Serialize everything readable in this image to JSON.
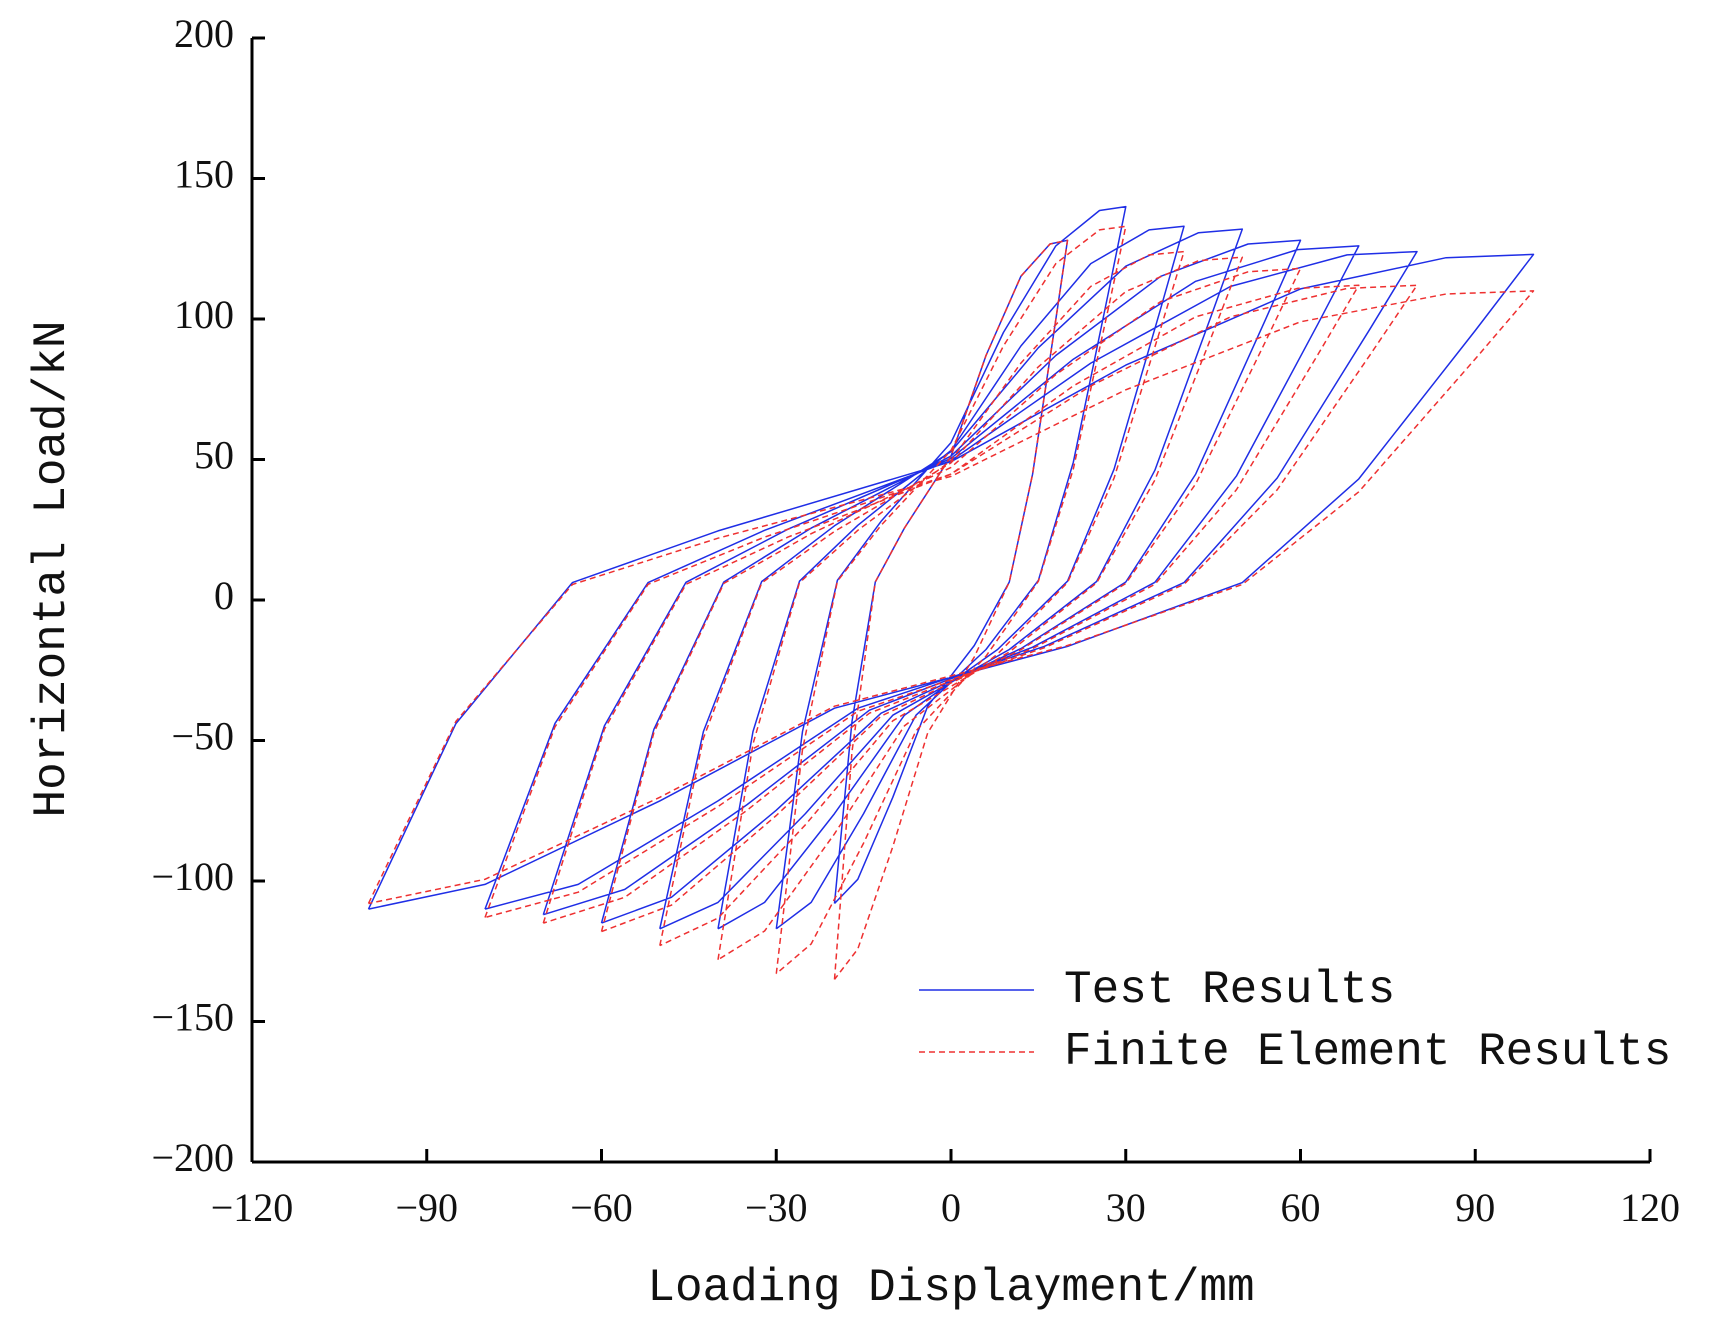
{
  "chart_data": {
    "type": "line",
    "xlabel": "Loading Displayment/mm",
    "ylabel": "Horizontal Load/kN",
    "xlim": [
      -120,
      120
    ],
    "ylim": [
      -200,
      200
    ],
    "xticks": [
      {
        "value": -120,
        "label": "−120"
      },
      {
        "value": -90,
        "label": "−90"
      },
      {
        "value": -60,
        "label": "−60"
      },
      {
        "value": -30,
        "label": "−30"
      },
      0,
      30,
      60,
      90,
      120
    ],
    "yticks": [
      {
        "value": -200,
        "label": "−200"
      },
      {
        "value": -150,
        "label": "−150"
      },
      {
        "value": -100,
        "label": "−100"
      },
      {
        "value": -50,
        "label": "−50"
      },
      0,
      50,
      100,
      150,
      200
    ],
    "legend": "lower right",
    "series": [
      {
        "name": "Test Results",
        "color": "#1f2ee6",
        "dash": "solid",
        "x": [
          -20,
          -17,
          -13,
          -8,
          0,
          6,
          12,
          17,
          20,
          18,
          14,
          10,
          4,
          -4,
          -10,
          -16,
          -20,
          null,
          -30,
          -25.5,
          -19.5,
          -12,
          0,
          9,
          18,
          25.5,
          30,
          27,
          21,
          15,
          6,
          -6,
          -15,
          -24,
          -30,
          null,
          -40,
          -34,
          -26,
          -16,
          0,
          12,
          24,
          34,
          40,
          36,
          28,
          20,
          8,
          -8,
          -20,
          -32,
          -40,
          null,
          -50,
          -42.5,
          -32.5,
          -20,
          0,
          15,
          30,
          42.5,
          50,
          45,
          35,
          25,
          10,
          -10,
          -25,
          -40,
          -50,
          null,
          -60,
          -51,
          -39,
          -24,
          0,
          18,
          36,
          51,
          60,
          54,
          42,
          30,
          12,
          -12,
          -30,
          -48,
          -60,
          null,
          -70,
          -59.5,
          -45.5,
          -28,
          0,
          21,
          42,
          59.5,
          70,
          63,
          49,
          35,
          14,
          -14,
          -35,
          -56,
          -70,
          null,
          -80,
          -68,
          -52,
          -32,
          0,
          24,
          48,
          68,
          80,
          72,
          56,
          40,
          16,
          -16,
          -40,
          -64,
          -80,
          null,
          -100,
          -85,
          -65,
          -40,
          0,
          30,
          60,
          85,
          100,
          90,
          70,
          50,
          20,
          -20,
          -50,
          -80,
          -100
        ],
        "values": [
          -108,
          -43.2,
          6.4,
          25.6,
          51.2,
          87,
          115.2,
          126.7,
          128,
          99.8,
          44.8,
          6.4,
          -16.2,
          -37.8,
          -70.2,
          -99.4,
          -108,
          null,
          -117,
          -46.8,
          7,
          28,
          56,
          95.2,
          126,
          138.6,
          140,
          109.2,
          49,
          7,
          -17.6,
          -41,
          -76,
          -107.6,
          -117,
          null,
          -117,
          -46.8,
          6.7,
          26.6,
          53.2,
          90.4,
          119.7,
          131.7,
          133,
          103.7,
          46.6,
          6.7,
          -17.6,
          -41,
          -76,
          -107.6,
          -117,
          null,
          -117,
          -46.8,
          6.6,
          26.4,
          52.8,
          89.8,
          118.8,
          130.7,
          132,
          103,
          46.2,
          6.6,
          -17.6,
          -41,
          -76,
          -107.6,
          -117,
          null,
          -115,
          -46,
          6.4,
          25.6,
          51.2,
          87,
          115.2,
          126.7,
          128,
          99.8,
          44.8,
          6.4,
          -17.3,
          -40.3,
          -74.8,
          -105.8,
          -115,
          null,
          -112,
          -44.8,
          6.3,
          25.2,
          50.4,
          85.7,
          113.4,
          124.7,
          126,
          98.3,
          44.1,
          6.3,
          -16.8,
          -39.2,
          -72.8,
          -103,
          -112,
          null,
          -110,
          -44,
          6.2,
          24.8,
          49.6,
          84.3,
          111.6,
          122.8,
          124,
          96.7,
          43.4,
          6.2,
          -16.5,
          -38.5,
          -71.5,
          -101.2,
          -110,
          null,
          -110,
          -44,
          6.2,
          24.6,
          49.2,
          83.6,
          110.7,
          121.8,
          123,
          95.9,
          43.1,
          6.2,
          -16.5,
          -38.5,
          -71.5,
          -101.2,
          -110
        ]
      },
      {
        "name": "Finite Element Results",
        "color": "#ee3030",
        "dash": "dashed",
        "x": [
          -20,
          -17,
          -13,
          -8,
          0,
          6,
          12,
          17,
          20,
          18,
          14,
          10,
          4,
          -4,
          -10,
          -16,
          -20,
          null,
          -30,
          -25.5,
          -19.5,
          -12,
          0,
          9,
          18,
          25.5,
          30,
          27,
          21,
          15,
          6,
          -6,
          -15,
          -24,
          -30,
          null,
          -40,
          -34,
          -26,
          -16,
          0,
          12,
          24,
          34,
          40,
          36,
          28,
          20,
          8,
          -8,
          -20,
          -32,
          -40,
          null,
          -50,
          -42.5,
          -32.5,
          -20,
          0,
          15,
          30,
          42.5,
          50,
          45,
          35,
          25,
          10,
          -10,
          -25,
          -40,
          -50,
          null,
          -60,
          -51,
          -39,
          -24,
          0,
          18,
          36,
          51,
          60,
          54,
          42,
          30,
          12,
          -12,
          -30,
          -48,
          -60,
          null,
          -70,
          -59.5,
          -45.5,
          -28,
          0,
          21,
          42,
          59.5,
          70,
          63,
          49,
          35,
          14,
          -14,
          -35,
          -56,
          -70,
          null,
          -80,
          -68,
          -52,
          -32,
          0,
          24,
          48,
          68,
          80,
          72,
          56,
          40,
          16,
          -16,
          -40,
          -64,
          -80,
          null,
          -100,
          -85,
          -65,
          -40,
          0,
          30,
          60,
          85,
          100,
          90,
          70,
          50,
          20,
          -20,
          -50,
          -80,
          -100
        ],
        "values": [
          -135,
          -54,
          6.4,
          25.6,
          51.2,
          87,
          115.2,
          126.7,
          128,
          99.8,
          44.8,
          6.4,
          -20.3,
          -47.3,
          -87.8,
          -124.2,
          -135,
          null,
          -133,
          -53.2,
          6.7,
          26.6,
          53.2,
          90.4,
          119.7,
          131.7,
          133,
          103.7,
          46.6,
          6.7,
          -20,
          -46.6,
          -86.5,
          -122.4,
          -133,
          null,
          -128,
          -51.2,
          6.2,
          24.8,
          49.6,
          84.3,
          111.6,
          122.8,
          124,
          96.7,
          43.4,
          6.2,
          -19.2,
          -44.8,
          -83.2,
          -117.8,
          -128,
          null,
          -123,
          -49.2,
          6.1,
          24.4,
          48.8,
          83,
          109.8,
          120.8,
          122,
          95.2,
          42.7,
          6.1,
          -18.5,
          -43,
          -80,
          -113.2,
          -123,
          null,
          -118,
          -47.2,
          5.9,
          23.6,
          47.2,
          80.2,
          106.2,
          116.8,
          118,
          92,
          41.3,
          5.9,
          -17.7,
          -41.3,
          -76.7,
          -108.6,
          -118,
          null,
          -115,
          -46,
          5.6,
          22.4,
          44.8,
          76.2,
          100.8,
          110.9,
          112,
          87.4,
          39.2,
          5.6,
          -17.3,
          -40.3,
          -74.8,
          -105.8,
          -115,
          null,
          -113,
          -45.2,
          5.6,
          22.4,
          44.8,
          76.2,
          100.8,
          110.9,
          112,
          87.4,
          39.2,
          5.6,
          -17,
          -39.6,
          -73.5,
          -104,
          -113,
          null,
          -108,
          -43.2,
          5.5,
          22,
          44,
          74.8,
          99,
          108.9,
          110,
          85.8,
          38.5,
          5.5,
          -16.2,
          -37.8,
          -70.2,
          -99.4,
          -108
        ]
      }
    ]
  }
}
